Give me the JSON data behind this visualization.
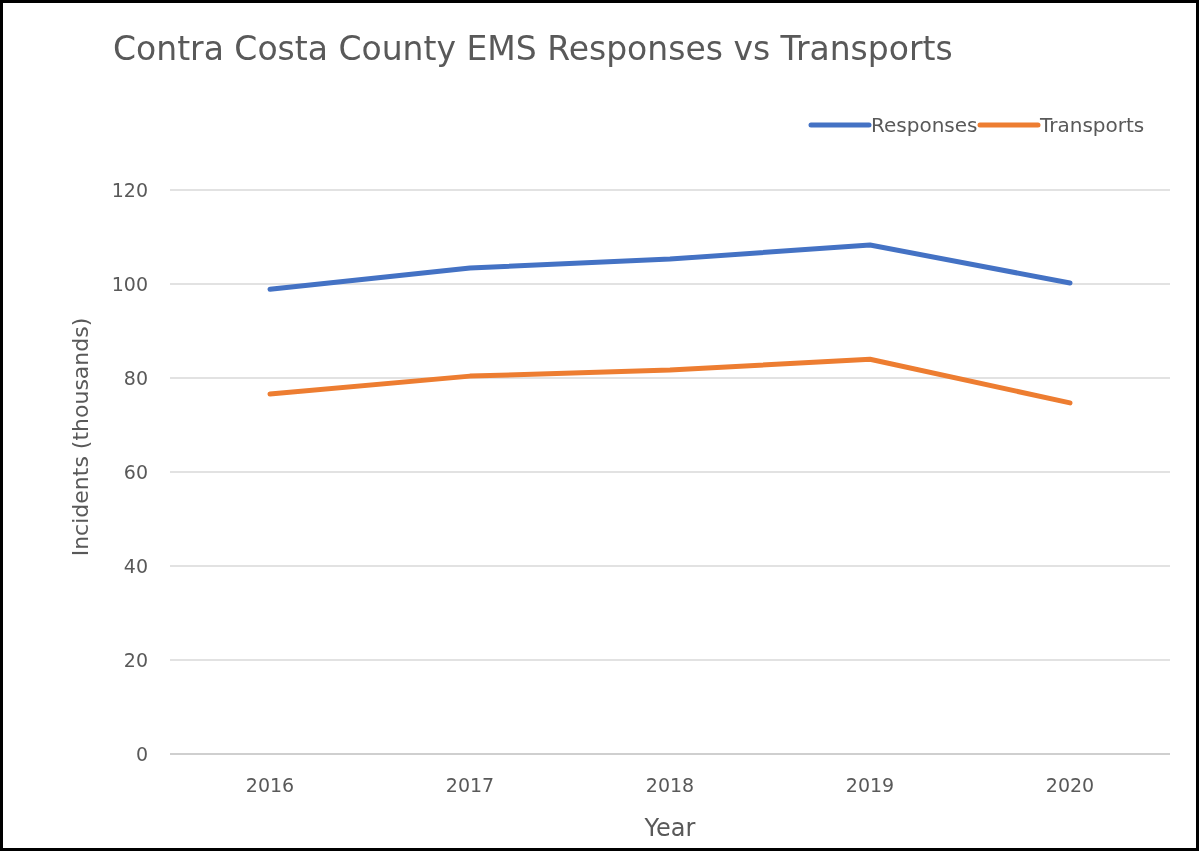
{
  "chart_data": {
    "type": "line",
    "title": "Contra Costa County EMS Responses vs Transports",
    "xlabel": "Year",
    "ylabel": "Incidents  (thousands)",
    "categories": [
      "2016",
      "2017",
      "2018",
      "2019",
      "2020"
    ],
    "series": [
      {
        "name": "Responses",
        "color": "#4472c4",
        "values": [
          98.9,
          103.4,
          105.3,
          108.3,
          100.2
        ]
      },
      {
        "name": "Transports",
        "color": "#ed7d31",
        "values": [
          76.6,
          80.4,
          81.7,
          84.0,
          74.7
        ]
      }
    ],
    "ylim": [
      0,
      120
    ],
    "yticks": [
      0,
      20,
      40,
      60,
      80,
      100,
      120
    ],
    "grid": "y",
    "legend": "top right",
    "marker": "none",
    "line_style": "solid"
  }
}
